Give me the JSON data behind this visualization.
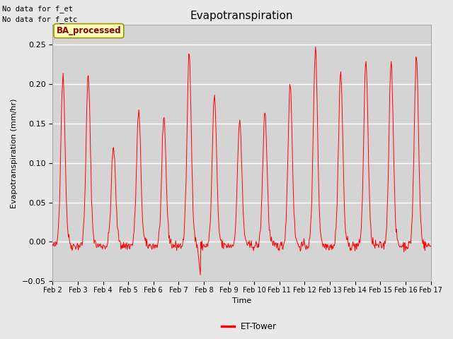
{
  "title": "Evapotranspiration",
  "ylabel": "Evapotranspiration (mm/hr)",
  "xlabel": "Time",
  "text_no_data": [
    "No data for f_et",
    "No data for f_etc"
  ],
  "legend_label": "ET-Tower",
  "legend_label_box": "BA_processed",
  "ylim": [
    -0.05,
    0.275
  ],
  "yticks": [
    -0.05,
    0.0,
    0.05,
    0.1,
    0.15,
    0.2,
    0.25
  ],
  "xtick_labels": [
    "Feb 2",
    "Feb 3",
    "Feb 4",
    "Feb 5",
    "Feb 6",
    "Feb 7",
    "Feb 8",
    "Feb 9",
    "Feb 10",
    "Feb 11",
    "Feb 12",
    "Feb 13",
    "Feb 14",
    "Feb 15",
    "Feb 16",
    "Feb 17"
  ],
  "line_color": "red",
  "fig_bg_color": "#e8e8e8",
  "plot_bg_color": "#d4d4d4",
  "grid_color": "white",
  "title_fontsize": 11,
  "axis_fontsize": 8,
  "tick_fontsize": 8
}
